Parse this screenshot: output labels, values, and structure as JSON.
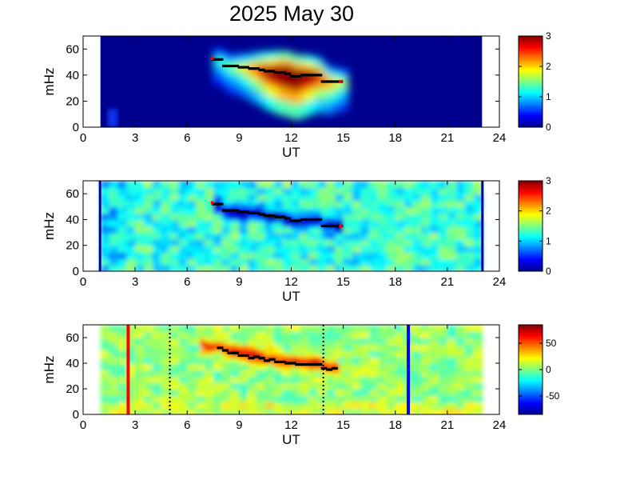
{
  "title": "2025 May 30",
  "colors": {
    "ridge_marker": "#000000",
    "ridge_end_marker": "#ff0000",
    "start_line": "#ff0000",
    "end_line": "#0000ff",
    "event_boundary": "#000000",
    "background_navy": "#00008f"
  },
  "chart_data": [
    {
      "type": "heatmap",
      "panel": "spectral power",
      "xlabel": "UT",
      "ylabel": "mHz",
      "xlim": [
        0,
        24
      ],
      "ylim": [
        0,
        70
      ],
      "xticks": [
        "0",
        "3",
        "6",
        "9",
        "12",
        "15",
        "18",
        "21",
        "24"
      ],
      "yticks": [
        "0",
        "20",
        "40",
        "60"
      ],
      "data_ut_range": [
        1,
        23
      ],
      "colorbar": {
        "min": 0,
        "max": 3,
        "ticks": [
          "0",
          "1",
          "2",
          "3"
        ]
      },
      "ridge": {
        "x": [
          7.6,
          7.9,
          8.2,
          8.5,
          8.8,
          9.1,
          9.4,
          9.7,
          10.0,
          10.3,
          10.6,
          10.9,
          11.2,
          11.5,
          11.8,
          12.1,
          12.4,
          12.7,
          13.0,
          13.3,
          13.6,
          13.9,
          14.2,
          14.5,
          14.8
        ],
        "y": [
          52,
          52,
          47,
          47,
          47,
          46,
          46,
          45,
          45,
          44,
          43,
          43,
          42,
          42,
          41,
          39,
          39,
          40,
          40,
          40,
          40,
          35,
          35,
          35,
          35
        ]
      },
      "ridge_endpoints": [
        [
          7.45,
          53
        ],
        [
          14.85,
          35
        ]
      ]
    },
    {
      "type": "heatmap",
      "panel": "normalized power",
      "xlabel": "UT",
      "ylabel": "mHz",
      "xlim": [
        0,
        24
      ],
      "ylim": [
        0,
        70
      ],
      "xticks": [
        "0",
        "3",
        "6",
        "9",
        "12",
        "15",
        "18",
        "21",
        "24"
      ],
      "yticks": [
        "0",
        "20",
        "40",
        "60"
      ],
      "data_ut_range": [
        1,
        23
      ],
      "colorbar": {
        "min": 0,
        "max": 3,
        "ticks": [
          "0",
          "1",
          "2",
          "3"
        ]
      },
      "ridge": {
        "x": [
          7.6,
          7.9,
          8.2,
          8.5,
          8.8,
          9.1,
          9.4,
          9.7,
          10.0,
          10.3,
          10.6,
          10.9,
          11.2,
          11.5,
          11.8,
          12.1,
          12.4,
          12.7,
          13.0,
          13.3,
          13.6,
          13.9,
          14.2,
          14.5,
          14.8
        ],
        "y": [
          52,
          52,
          47,
          47,
          47,
          46,
          46,
          45,
          45,
          44,
          43,
          43,
          42,
          42,
          41,
          39,
          39,
          40,
          40,
          40,
          40,
          35,
          35,
          35,
          35
        ]
      },
      "ridge_endpoints": [
        [
          7.45,
          53
        ],
        [
          14.85,
          35
        ]
      ]
    },
    {
      "type": "heatmap",
      "panel": "difference",
      "xlabel": "UT",
      "ylabel": "mHz",
      "xlim": [
        0,
        24
      ],
      "ylim": [
        0,
        70
      ],
      "xticks": [
        "0",
        "3",
        "6",
        "9",
        "12",
        "15",
        "18",
        "21",
        "24"
      ],
      "yticks": [
        "0",
        "20",
        "40",
        "60"
      ],
      "data_ut_range": [
        1,
        23
      ],
      "colorbar": {
        "min": -85,
        "max": 85,
        "ticks": [
          "50",
          "0",
          "-50"
        ]
      },
      "ridge": {
        "x": [
          7.9,
          8.2,
          8.5,
          8.8,
          9.1,
          9.4,
          9.7,
          10.0,
          10.3,
          10.6,
          10.9,
          11.2,
          11.5,
          11.8,
          12.1,
          12.4,
          12.7,
          13.0,
          13.3,
          13.6,
          13.9,
          14.2,
          14.5
        ],
        "y": [
          52,
          50,
          48,
          48,
          46,
          46,
          44,
          45,
          44,
          42,
          43,
          41,
          41,
          40,
          40,
          39,
          39,
          39,
          39,
          39,
          36,
          35,
          36
        ]
      },
      "vertical_lines": [
        {
          "ut": 2.6,
          "kind": "start_line"
        },
        {
          "ut": 5.0,
          "kind": "event_boundary"
        },
        {
          "ut": 13.85,
          "kind": "event_boundary"
        },
        {
          "ut": 18.75,
          "kind": "end_line"
        }
      ]
    }
  ]
}
